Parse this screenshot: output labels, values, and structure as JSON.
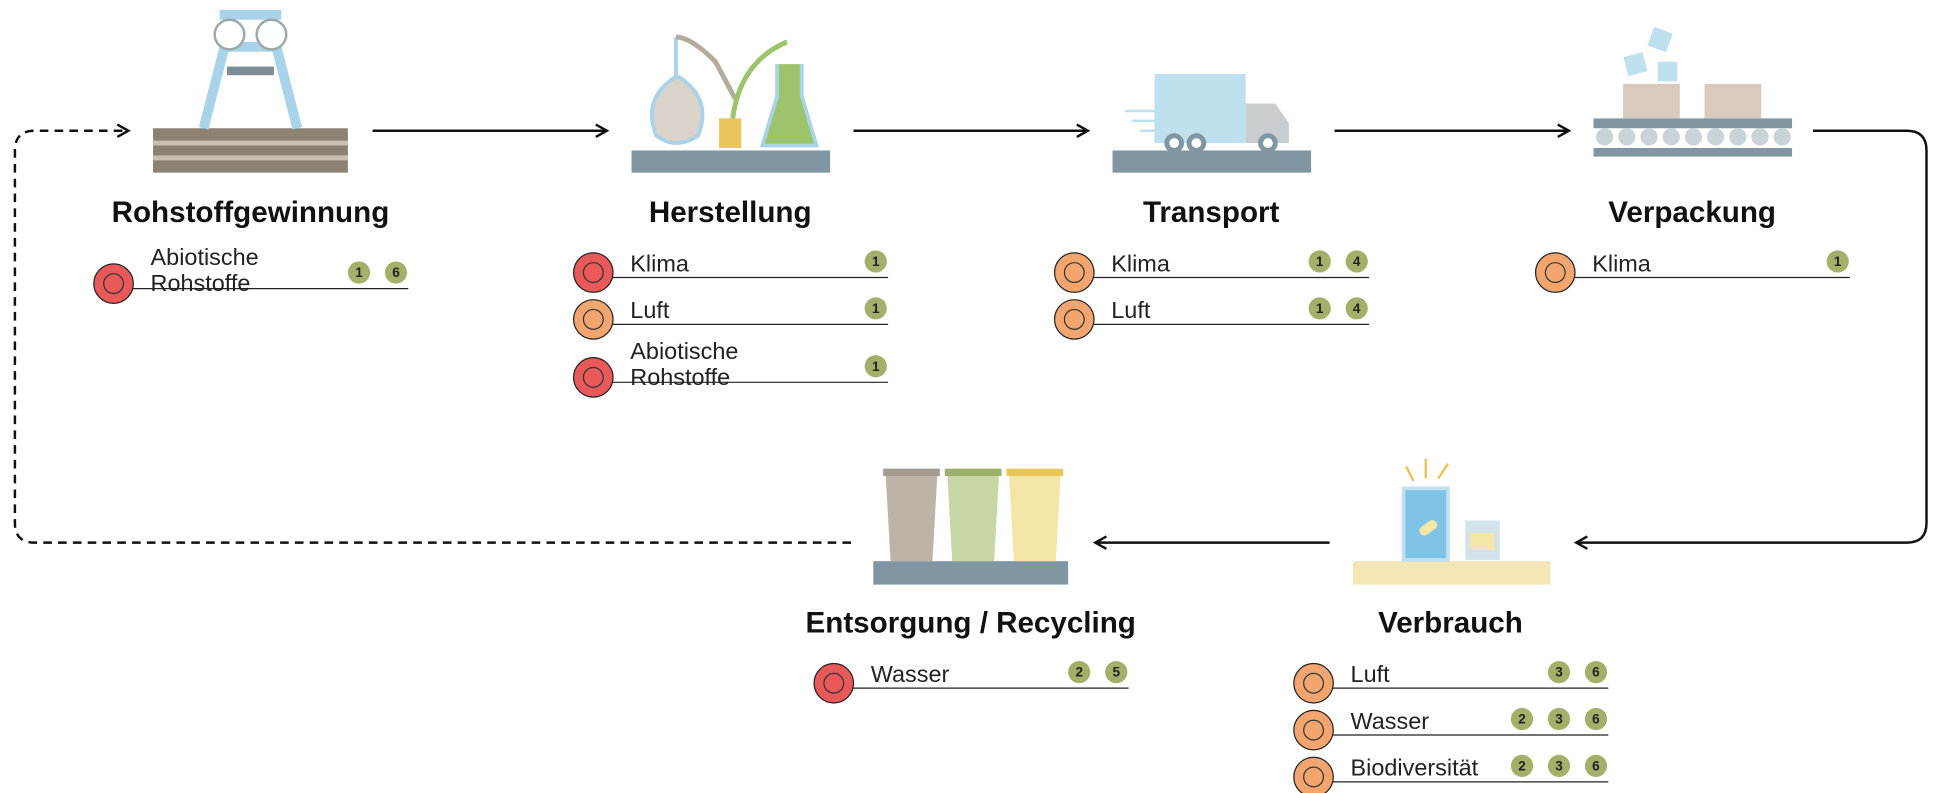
{
  "stages": [
    {
      "title": "Rohstoffgewinnung",
      "impacts": [
        {
          "label": [
            "Abiotische",
            "Rohstoffe"
          ],
          "color": "#e9595a",
          "badges": [
            "1",
            "6"
          ]
        }
      ]
    },
    {
      "title": "Herstellung",
      "impacts": [
        {
          "label": [
            "Klima"
          ],
          "color": "#e9595a",
          "badges": [
            "1"
          ]
        },
        {
          "label": [
            "Luft"
          ],
          "color": "#f2a56f",
          "badges": [
            "1"
          ]
        },
        {
          "label": [
            "Abiotische",
            "Rohstoffe"
          ],
          "color": "#e9595a",
          "badges": [
            "1"
          ]
        }
      ]
    },
    {
      "title": "Transport",
      "impacts": [
        {
          "label": [
            "Klima"
          ],
          "color": "#f2a56f",
          "badges": [
            "1",
            "4"
          ]
        },
        {
          "label": [
            "Luft"
          ],
          "color": "#f2a56f",
          "badges": [
            "1",
            "4"
          ]
        }
      ]
    },
    {
      "title": "Verpackung",
      "impacts": [
        {
          "label": [
            "Klima"
          ],
          "color": "#f2a56f",
          "badges": [
            "1"
          ]
        }
      ]
    },
    {
      "title": "Verbrauch",
      "impacts": [
        {
          "label": [
            "Luft"
          ],
          "color": "#f2a56f",
          "badges": [
            "3",
            "6"
          ]
        },
        {
          "label": [
            "Wasser"
          ],
          "color": "#f2a56f",
          "badges": [
            "2",
            "3",
            "6"
          ]
        },
        {
          "label": [
            "Biodiversität"
          ],
          "color": "#f2a56f",
          "badges": [
            "2",
            "3",
            "6"
          ]
        }
      ]
    },
    {
      "title": "Entsorgung / Recycling",
      "impacts": [
        {
          "label": [
            "Wasser"
          ],
          "color": "#e9595a",
          "badges": [
            "2",
            "5"
          ]
        }
      ]
    }
  ]
}
